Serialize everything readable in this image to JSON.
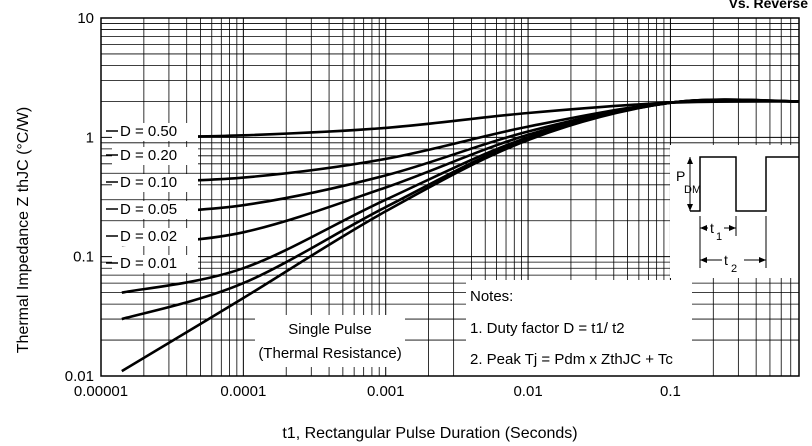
{
  "chart_data": {
    "type": "line",
    "title": "Vs. Reverse",
    "xlabel": "t1, Rectangular Pulse Duration (Seconds)",
    "ylabel": "Thermal Impedance Z thJC (°C/W)",
    "x_scale": "log",
    "y_scale": "log",
    "xlim": [
      1e-05,
      0.8
    ],
    "ylim": [
      0.01,
      10
    ],
    "grid": true,
    "x_ticks": [
      {
        "value": 1e-05,
        "label": "0.00001"
      },
      {
        "value": 0.0001,
        "label": "0.0001"
      },
      {
        "value": 0.001,
        "label": "0.001"
      },
      {
        "value": 0.01,
        "label": "0.01"
      },
      {
        "value": 0.1,
        "label": "0.1"
      }
    ],
    "y_ticks": [
      {
        "value": 0.01,
        "label": "0.01"
      },
      {
        "value": 0.1,
        "label": "0.1"
      },
      {
        "value": 1,
        "label": "1"
      },
      {
        "value": 10,
        "label": "10"
      }
    ],
    "series": [
      {
        "name": "D = 0.50",
        "x": [
          1.4e-05,
          0.0001,
          0.001,
          0.01,
          0.1,
          0.8
        ],
        "y": [
          1.0,
          1.04,
          1.2,
          1.6,
          1.95,
          2.0
        ]
      },
      {
        "name": "D = 0.20",
        "x": [
          1.4e-05,
          0.0001,
          0.001,
          0.01,
          0.1,
          0.8
        ],
        "y": [
          0.42,
          0.46,
          0.66,
          1.23,
          1.95,
          2.0
        ]
      },
      {
        "name": "D = 0.10",
        "x": [
          1.4e-05,
          0.0001,
          0.001,
          0.01,
          0.1,
          0.8
        ],
        "y": [
          0.23,
          0.27,
          0.48,
          1.12,
          1.95,
          2.0
        ]
      },
      {
        "name": "D = 0.05",
        "x": [
          1.4e-05,
          0.0001,
          0.001,
          0.01,
          0.1,
          0.8
        ],
        "y": [
          0.125,
          0.16,
          0.38,
          1.05,
          1.95,
          2.0
        ]
      },
      {
        "name": "D = 0.02",
        "x": [
          1.4e-05,
          0.0001,
          0.001,
          0.01,
          0.1,
          0.8
        ],
        "y": [
          0.05,
          0.08,
          0.3,
          1.0,
          1.95,
          2.0
        ]
      },
      {
        "name": "D = 0.01",
        "x": [
          1.4e-05,
          0.0001,
          0.001,
          0.01,
          0.1,
          0.8
        ],
        "y": [
          0.03,
          0.06,
          0.26,
          0.98,
          1.95,
          2.0
        ]
      },
      {
        "name": "Single Pulse",
        "x": [
          1.4e-05,
          0.0001,
          0.001,
          0.01,
          0.1,
          0.8
        ],
        "y": [
          0.011,
          0.045,
          0.24,
          0.95,
          1.95,
          2.0
        ]
      }
    ],
    "annotations": {
      "single_pulse": [
        "Single Pulse",
        "(Thermal Resistance)"
      ],
      "notes": [
        "Notes:",
        "1. Duty factor D =  t1/ t2",
        "2. Peak Tj  = Pdm  x ZthJC  + Tc"
      ],
      "inset_pulse": {
        "pdm": "P",
        "pdm_sub": "DM",
        "t1": "t",
        "t1_sub": "1",
        "t2": "t",
        "t2_sub": "2"
      }
    }
  }
}
